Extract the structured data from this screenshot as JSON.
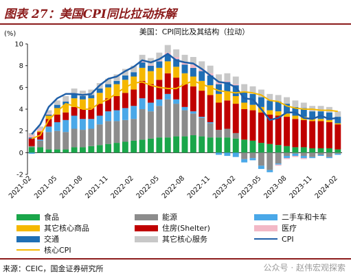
{
  "figure_title": "图表 27：美国CPI同比拉动拆解",
  "source": "来源：CEIC，国金证券研究所",
  "watermark": "公众号 · 赵伟宏观探索",
  "chart_data": {
    "type": "bar",
    "stacked": true,
    "title": "美国：CPI同比及其结构（拉动）",
    "ylabel": "(%)",
    "xlabel": "",
    "ylim": [
      -2,
      10
    ],
    "yticks": [
      -2,
      0,
      2,
      4,
      6,
      8,
      10
    ],
    "xtick_labels": [
      "2021-02",
      "2021-05",
      "2021-08",
      "2021-11",
      "2022-02",
      "2022-05",
      "2022-08",
      "2022-11",
      "2023-02",
      "2023-05",
      "2023-08",
      "2023-11",
      "2024-02"
    ],
    "categories": [
      "2021-02",
      "2021-03",
      "2021-04",
      "2021-05",
      "2021-06",
      "2021-07",
      "2021-08",
      "2021-09",
      "2021-10",
      "2021-11",
      "2021-12",
      "2022-01",
      "2022-02",
      "2022-03",
      "2022-04",
      "2022-05",
      "2022-06",
      "2022-07",
      "2022-08",
      "2022-09",
      "2022-10",
      "2022-11",
      "2022-12",
      "2023-01",
      "2023-02",
      "2023-03",
      "2023-04",
      "2023-05",
      "2023-06",
      "2023-07",
      "2023-08",
      "2023-09",
      "2023-10",
      "2023-11",
      "2023-12",
      "2024-01",
      "2024-02"
    ],
    "legend_position": "bottom",
    "series": [
      {
        "name": "食品",
        "color": "#1aa64a",
        "values": [
          0.5,
          0.5,
          0.3,
          0.3,
          0.3,
          0.5,
          0.5,
          0.6,
          0.7,
          0.8,
          0.9,
          1.0,
          1.1,
          1.2,
          1.3,
          1.4,
          1.4,
          1.5,
          1.5,
          1.6,
          1.5,
          1.4,
          1.4,
          1.4,
          1.3,
          1.2,
          1.1,
          0.9,
          0.8,
          0.7,
          0.6,
          0.5,
          0.5,
          0.4,
          0.4,
          0.4,
          0.3
        ]
      },
      {
        "name": "能源",
        "color": "#8c8c8c",
        "values": [
          0.1,
          0.6,
          1.6,
          1.7,
          1.6,
          1.7,
          1.6,
          1.6,
          1.9,
          2.1,
          2.0,
          2.0,
          2.0,
          2.8,
          2.5,
          2.9,
          3.5,
          3.0,
          2.4,
          2.0,
          1.7,
          1.3,
          0.7,
          0.8,
          0.5,
          -0.6,
          -0.5,
          -1.2,
          -1.6,
          -1.0,
          -0.3,
          -0.1,
          -0.3,
          -0.4,
          -0.2,
          -0.4,
          -0.1
        ]
      },
      {
        "name": "二手车和卡车",
        "color": "#4aa8e8",
        "values": [
          -0.1,
          0.1,
          0.5,
          0.8,
          1.1,
          1.2,
          1.0,
          0.9,
          0.8,
          0.9,
          1.0,
          1.1,
          1.2,
          1.0,
          0.8,
          0.6,
          0.5,
          0.4,
          0.3,
          0.2,
          0.1,
          0.1,
          -0.2,
          -0.3,
          -0.4,
          -0.3,
          -0.2,
          -0.3,
          -0.2,
          -0.1,
          -0.2,
          -0.2,
          -0.2,
          -0.1,
          -0.1,
          -0.1,
          -0.1
        ]
      },
      {
        "name": "住房(Shelter)",
        "color": "#c00000",
        "values": [
          0.7,
          0.7,
          0.7,
          0.7,
          0.7,
          0.8,
          0.9,
          1.0,
          1.1,
          1.2,
          1.3,
          1.4,
          1.5,
          1.6,
          1.7,
          1.8,
          1.9,
          2.0,
          2.1,
          2.3,
          2.4,
          2.5,
          2.5,
          2.6,
          2.7,
          2.8,
          2.8,
          2.8,
          2.7,
          2.7,
          2.7,
          2.6,
          2.5,
          2.5,
          2.5,
          2.4,
          2.3
        ]
      },
      {
        "name": "其它核心商品",
        "color": "#f5b800",
        "values": [
          0.0,
          0.1,
          0.3,
          0.6,
          0.7,
          0.8,
          0.9,
          0.9,
          1.0,
          1.0,
          1.1,
          1.2,
          1.2,
          1.2,
          1.2,
          1.1,
          1.1,
          1.0,
          1.0,
          0.9,
          0.9,
          0.9,
          0.8,
          0.8,
          0.7,
          0.6,
          0.5,
          0.5,
          0.4,
          0.4,
          0.3,
          0.3,
          0.3,
          0.2,
          0.2,
          0.2,
          0.1
        ]
      },
      {
        "name": "交通",
        "color": "#1f6fb5",
        "values": [
          0.1,
          0.0,
          0.1,
          0.3,
          0.3,
          0.4,
          0.3,
          0.3,
          0.4,
          0.3,
          0.3,
          0.4,
          0.4,
          0.5,
          0.5,
          0.6,
          0.6,
          0.7,
          0.8,
          0.8,
          0.9,
          0.9,
          0.9,
          0.9,
          1.0,
          1.0,
          1.0,
          0.9,
          0.9,
          0.9,
          0.9,
          0.8,
          0.8,
          0.7,
          0.7,
          0.7,
          0.6
        ]
      },
      {
        "name": "医疗",
        "color": "#f2b8c6",
        "values": [
          0.2,
          0.2,
          0.1,
          0.0,
          0.0,
          0.0,
          0.0,
          0.0,
          0.0,
          0.0,
          0.0,
          0.0,
          0.0,
          0.1,
          0.1,
          0.1,
          0.2,
          0.2,
          0.2,
          0.3,
          0.2,
          0.2,
          0.2,
          0.1,
          0.1,
          0.0,
          0.0,
          0.0,
          0.0,
          -0.1,
          -0.1,
          -0.1,
          -0.1,
          0.0,
          0.0,
          0.0,
          0.0
        ]
      },
      {
        "name": "其它核心服务",
        "color": "#c8c8c8",
        "values": [
          0.2,
          0.2,
          0.3,
          0.4,
          0.5,
          0.5,
          0.5,
          0.5,
          0.5,
          0.5,
          0.6,
          0.6,
          0.6,
          0.6,
          0.6,
          0.7,
          0.7,
          0.7,
          0.7,
          0.7,
          0.7,
          0.7,
          0.7,
          0.7,
          0.7,
          0.7,
          0.7,
          0.7,
          0.6,
          0.6,
          0.6,
          0.6,
          0.5,
          0.5,
          0.5,
          0.5,
          0.5
        ]
      }
    ],
    "lines": [
      {
        "name": "CPI",
        "color": "#1f5fa8",
        "width": 2.5,
        "values": [
          1.7,
          2.6,
          4.2,
          5.0,
          5.4,
          5.4,
          5.3,
          5.4,
          6.2,
          6.8,
          7.0,
          7.5,
          7.9,
          8.5,
          8.3,
          8.6,
          9.1,
          8.5,
          8.3,
          8.2,
          7.7,
          7.1,
          6.5,
          6.4,
          6.0,
          5.0,
          4.9,
          4.0,
          3.0,
          3.2,
          3.7,
          3.7,
          3.2,
          3.1,
          3.4,
          3.1,
          3.2
        ]
      },
      {
        "name": "核心CPI",
        "color": "#f5b800",
        "width": 2,
        "values": [
          1.3,
          1.6,
          3.0,
          3.8,
          4.5,
          4.3,
          4.0,
          4.0,
          4.6,
          4.9,
          5.5,
          6.0,
          6.4,
          6.5,
          6.2,
          6.0,
          5.9,
          5.9,
          6.3,
          6.6,
          6.3,
          6.0,
          5.7,
          5.6,
          5.5,
          5.6,
          5.5,
          5.3,
          4.8,
          4.7,
          4.3,
          4.1,
          4.0,
          4.0,
          3.9,
          3.9,
          3.8
        ]
      }
    ]
  },
  "legend_items": [
    {
      "label": "食品",
      "color": "#1aa64a",
      "kind": "bar"
    },
    {
      "label": "能源",
      "color": "#8c8c8c",
      "kind": "bar"
    },
    {
      "label": "二手车和卡车",
      "color": "#4aa8e8",
      "kind": "bar"
    },
    {
      "label": "其它核心商品",
      "color": "#f5b800",
      "kind": "bar"
    },
    {
      "label": "住房(Shelter)",
      "color": "#c00000",
      "kind": "bar"
    },
    {
      "label": "医疗",
      "color": "#f2b8c6",
      "kind": "bar"
    },
    {
      "label": "交通",
      "color": "#1f6fb5",
      "kind": "bar"
    },
    {
      "label": "其它核心服务",
      "color": "#c8c8c8",
      "kind": "bar"
    },
    {
      "label": "CPI",
      "color": "#1f5fa8",
      "kind": "line"
    },
    {
      "label": "核心CPI",
      "color": "#f5b800",
      "kind": "line"
    }
  ]
}
